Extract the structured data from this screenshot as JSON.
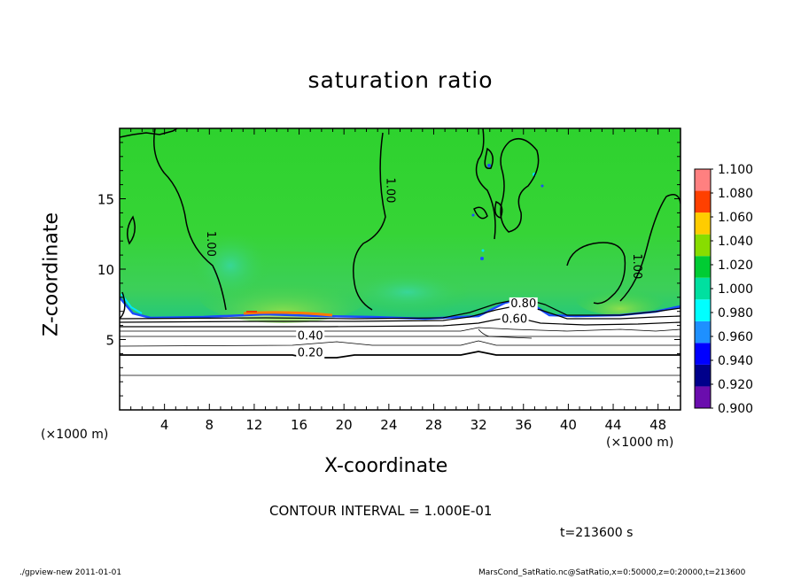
{
  "chart_data": {
    "type": "heatmap",
    "title": "saturation ratio",
    "xlabel": "X-coordinate",
    "ylabel": "Z-coordinate",
    "x_unit_label": "(×1000 m)",
    "xlim": [
      0,
      50
    ],
    "ylim": [
      0,
      20
    ],
    "x_ticks": [
      4,
      8,
      12,
      16,
      20,
      24,
      28,
      32,
      36,
      40,
      44,
      48
    ],
    "y_ticks": [
      5,
      10,
      15
    ],
    "colorbar": {
      "levels": [
        "0.900",
        "0.920",
        "0.940",
        "0.960",
        "0.980",
        "1.000",
        "1.020",
        "1.040",
        "1.060",
        "1.080",
        "1.100"
      ],
      "colors": [
        "#6a0dad",
        "#00008b",
        "#0000ff",
        "#1e90ff",
        "#00ffff",
        "#00e0a0",
        "#00cc33",
        "#88dd00",
        "#ffcc00",
        "#ff4000",
        "#ff8080"
      ]
    },
    "contour_labels": [
      {
        "text": "1.00",
        "x": 7.8,
        "z": 11.8
      },
      {
        "text": "1.00",
        "x": 23.8,
        "z": 15.6
      },
      {
        "text": "1.00",
        "x": 45.8,
        "z": 10.2
      },
      {
        "text": "0.80",
        "x": 36.0,
        "z": 7.3
      },
      {
        "text": "0.60",
        "x": 35.2,
        "z": 6.2
      },
      {
        "text": "0.40",
        "x": 17.0,
        "z": 5.0
      },
      {
        "text": "0.20",
        "x": 17.0,
        "z": 3.8
      }
    ],
    "bottom_contours_z": [
      2.4,
      3.8,
      4.4,
      5.0,
      5.4,
      5.8,
      6.1,
      6.4
    ]
  },
  "contour_interval_text": "CONTOUR INTERVAL = 1.000E-01",
  "time_text": "t=213600 s",
  "footer_left": "./gpview-new   2011-01-01",
  "footer_right": "MarsCond_SatRatio.nc@SatRatio,x=0:50000,z=0:20000,t=213600"
}
